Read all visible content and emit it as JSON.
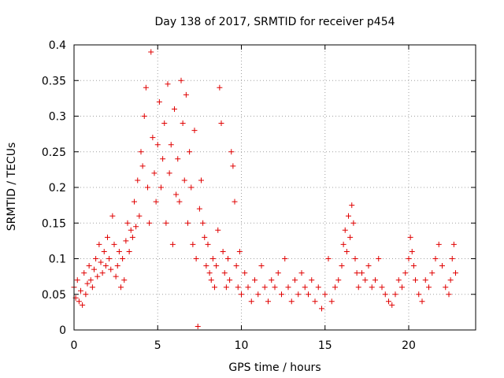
{
  "chart_data": {
    "type": "scatter",
    "title": "Day 138 of 2017, SRMTID for receiver p454",
    "xlabel": "GPS time / hours",
    "ylabel": "SRMTID / TECUs",
    "xlim": [
      0,
      24
    ],
    "ylim": [
      0,
      0.4
    ],
    "xticks": [
      0,
      5,
      10,
      15,
      20
    ],
    "xtick_labels": [
      "0",
      "5",
      "10",
      "15",
      "20"
    ],
    "yticks": [
      0,
      0.05,
      0.1,
      0.15,
      0.2,
      0.25,
      0.3,
      0.35,
      0.4
    ],
    "ytick_labels": [
      "0",
      "0.05",
      "0.1",
      "0.15",
      "0.2",
      "0.25",
      "0.3",
      "0.35",
      "0.4"
    ],
    "grid": true,
    "marker": "+",
    "color": "#e00000",
    "series": [
      {
        "name": "p454",
        "points": [
          [
            0.0,
            0.06
          ],
          [
            0.1,
            0.045
          ],
          [
            0.2,
            0.07
          ],
          [
            0.3,
            0.04
          ],
          [
            0.4,
            0.055
          ],
          [
            0.5,
            0.035
          ],
          [
            0.6,
            0.08
          ],
          [
            0.7,
            0.05
          ],
          [
            0.8,
            0.065
          ],
          [
            0.9,
            0.09
          ],
          [
            1.0,
            0.07
          ],
          [
            1.1,
            0.06
          ],
          [
            1.2,
            0.085
          ],
          [
            1.3,
            0.1
          ],
          [
            1.4,
            0.075
          ],
          [
            1.5,
            0.12
          ],
          [
            1.6,
            0.095
          ],
          [
            1.7,
            0.08
          ],
          [
            1.8,
            0.11
          ],
          [
            1.9,
            0.09
          ],
          [
            2.0,
            0.13
          ],
          [
            2.1,
            0.1
          ],
          [
            2.2,
            0.085
          ],
          [
            2.3,
            0.16
          ],
          [
            2.4,
            0.12
          ],
          [
            2.5,
            0.075
          ],
          [
            2.6,
            0.09
          ],
          [
            2.7,
            0.11
          ],
          [
            2.8,
            0.06
          ],
          [
            2.9,
            0.1
          ],
          [
            3.0,
            0.07
          ],
          [
            3.1,
            0.125
          ],
          [
            3.2,
            0.15
          ],
          [
            3.3,
            0.11
          ],
          [
            3.4,
            0.14
          ],
          [
            3.5,
            0.13
          ],
          [
            3.6,
            0.18
          ],
          [
            3.7,
            0.145
          ],
          [
            3.8,
            0.21
          ],
          [
            3.9,
            0.16
          ],
          [
            4.0,
            0.25
          ],
          [
            4.1,
            0.23
          ],
          [
            4.2,
            0.3
          ],
          [
            4.3,
            0.34
          ],
          [
            4.4,
            0.2
          ],
          [
            4.5,
            0.15
          ],
          [
            4.6,
            0.39
          ],
          [
            4.7,
            0.27
          ],
          [
            4.8,
            0.22
          ],
          [
            4.9,
            0.18
          ],
          [
            5.0,
            0.26
          ],
          [
            5.1,
            0.32
          ],
          [
            5.2,
            0.2
          ],
          [
            5.3,
            0.24
          ],
          [
            5.4,
            0.29
          ],
          [
            5.5,
            0.15
          ],
          [
            5.6,
            0.345
          ],
          [
            5.7,
            0.22
          ],
          [
            5.8,
            0.26
          ],
          [
            5.9,
            0.12
          ],
          [
            6.0,
            0.31
          ],
          [
            6.1,
            0.19
          ],
          [
            6.2,
            0.24
          ],
          [
            6.3,
            0.18
          ],
          [
            6.4,
            0.35
          ],
          [
            6.5,
            0.29
          ],
          [
            6.6,
            0.21
          ],
          [
            6.7,
            0.33
          ],
          [
            6.8,
            0.15
          ],
          [
            6.9,
            0.25
          ],
          [
            7.0,
            0.2
          ],
          [
            7.1,
            0.12
          ],
          [
            7.2,
            0.28
          ],
          [
            7.3,
            0.1
          ],
          [
            7.4,
            0.005
          ],
          [
            7.5,
            0.17
          ],
          [
            7.6,
            0.21
          ],
          [
            7.7,
            0.15
          ],
          [
            7.8,
            0.13
          ],
          [
            7.9,
            0.09
          ],
          [
            8.0,
            0.12
          ],
          [
            8.1,
            0.08
          ],
          [
            8.2,
            0.07
          ],
          [
            8.3,
            0.1
          ],
          [
            8.4,
            0.06
          ],
          [
            8.5,
            0.09
          ],
          [
            8.6,
            0.14
          ],
          [
            8.7,
            0.34
          ],
          [
            8.8,
            0.29
          ],
          [
            8.9,
            0.11
          ],
          [
            9.0,
            0.08
          ],
          [
            9.1,
            0.06
          ],
          [
            9.2,
            0.1
          ],
          [
            9.3,
            0.07
          ],
          [
            9.4,
            0.25
          ],
          [
            9.5,
            0.23
          ],
          [
            9.6,
            0.18
          ],
          [
            9.7,
            0.09
          ],
          [
            9.8,
            0.06
          ],
          [
            9.9,
            0.11
          ],
          [
            10.0,
            0.05
          ],
          [
            10.2,
            0.08
          ],
          [
            10.4,
            0.06
          ],
          [
            10.6,
            0.04
          ],
          [
            10.8,
            0.07
          ],
          [
            11.0,
            0.05
          ],
          [
            11.2,
            0.09
          ],
          [
            11.4,
            0.06
          ],
          [
            11.6,
            0.04
          ],
          [
            11.8,
            0.07
          ],
          [
            12.0,
            0.06
          ],
          [
            12.2,
            0.08
          ],
          [
            12.4,
            0.05
          ],
          [
            12.6,
            0.1
          ],
          [
            12.8,
            0.06
          ],
          [
            13.0,
            0.04
          ],
          [
            13.2,
            0.07
          ],
          [
            13.4,
            0.05
          ],
          [
            13.6,
            0.08
          ],
          [
            13.8,
            0.06
          ],
          [
            14.0,
            0.05
          ],
          [
            14.2,
            0.07
          ],
          [
            14.4,
            0.04
          ],
          [
            14.6,
            0.06
          ],
          [
            14.8,
            0.03
          ],
          [
            15.0,
            0.05
          ],
          [
            15.2,
            0.1
          ],
          [
            15.4,
            0.04
          ],
          [
            15.6,
            0.06
          ],
          [
            15.8,
            0.07
          ],
          [
            16.0,
            0.09
          ],
          [
            16.1,
            0.12
          ],
          [
            16.2,
            0.14
          ],
          [
            16.3,
            0.11
          ],
          [
            16.4,
            0.16
          ],
          [
            16.5,
            0.13
          ],
          [
            16.6,
            0.175
          ],
          [
            16.7,
            0.15
          ],
          [
            16.8,
            0.1
          ],
          [
            16.9,
            0.08
          ],
          [
            17.0,
            0.06
          ],
          [
            17.2,
            0.08
          ],
          [
            17.4,
            0.07
          ],
          [
            17.6,
            0.09
          ],
          [
            17.8,
            0.06
          ],
          [
            18.0,
            0.07
          ],
          [
            18.2,
            0.1
          ],
          [
            18.4,
            0.06
          ],
          [
            18.6,
            0.05
          ],
          [
            18.8,
            0.04
          ],
          [
            19.0,
            0.035
          ],
          [
            19.2,
            0.05
          ],
          [
            19.4,
            0.07
          ],
          [
            19.6,
            0.06
          ],
          [
            19.8,
            0.08
          ],
          [
            20.0,
            0.1
          ],
          [
            20.1,
            0.13
          ],
          [
            20.2,
            0.11
          ],
          [
            20.3,
            0.09
          ],
          [
            20.4,
            0.07
          ],
          [
            20.6,
            0.05
          ],
          [
            20.8,
            0.04
          ],
          [
            21.0,
            0.07
          ],
          [
            21.2,
            0.06
          ],
          [
            21.4,
            0.08
          ],
          [
            21.6,
            0.1
          ],
          [
            21.8,
            0.12
          ],
          [
            22.0,
            0.09
          ],
          [
            22.2,
            0.06
          ],
          [
            22.4,
            0.05
          ],
          [
            22.5,
            0.07
          ],
          [
            22.6,
            0.1
          ],
          [
            22.7,
            0.12
          ],
          [
            22.8,
            0.08
          ]
        ]
      }
    ]
  }
}
